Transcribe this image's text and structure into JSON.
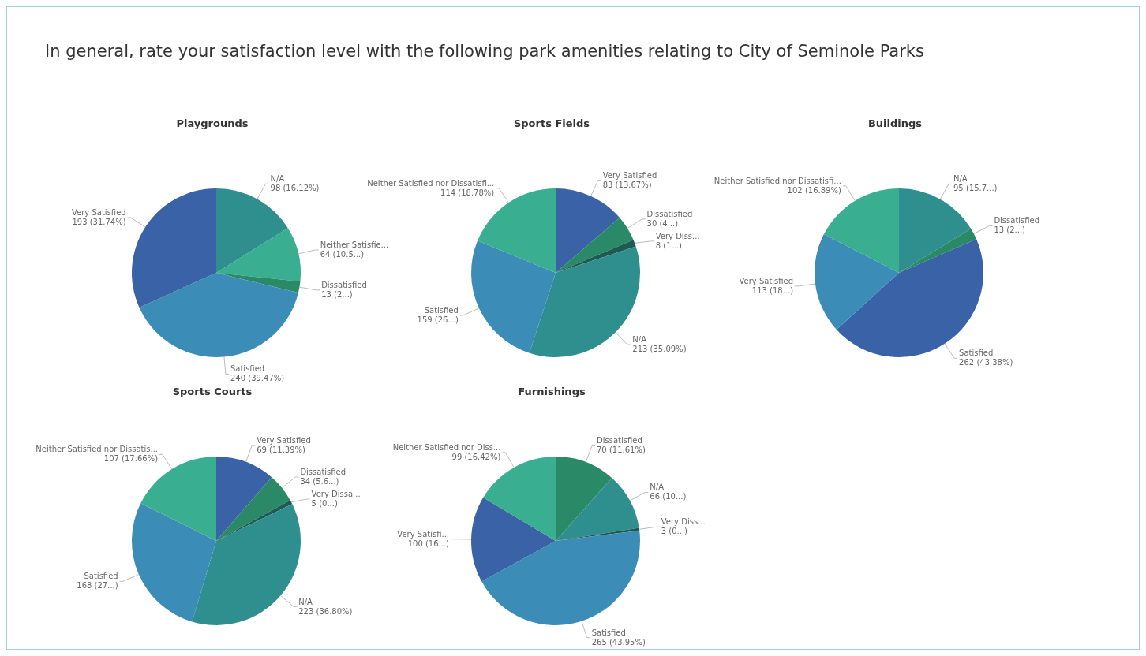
{
  "chart_data": [
    {
      "type": "other",
      "title": "In general, rate your satisfaction level with the following park amenities relating to City of Seminole Parks"
    },
    {
      "type": "pie",
      "title": "Playgrounds",
      "categories": [
        "N/A",
        "Neither Satisfie...",
        "Dissatisfied",
        "Satisfied",
        "Very Satisfied"
      ],
      "values": [
        98,
        64,
        13,
        240,
        193
      ],
      "value_labels": [
        "98 (16.12%)",
        "64 (10.5...)",
        "13 (2...)",
        "240 (39.47%)",
        "193 (31.74%)"
      ],
      "colors": [
        "#2f8f8e",
        "#3aae90",
        "#2a8a68",
        "#3b8db8",
        "#3a62a6"
      ]
    },
    {
      "type": "pie",
      "title": "Sports Fields",
      "categories": [
        "Very Satisfied",
        "Dissatisfied",
        "Very Diss...",
        "N/A",
        "Satisfied",
        "Neither Satisfied nor Dissatisfi..."
      ],
      "values": [
        83,
        30,
        8,
        213,
        159,
        114
      ],
      "value_labels": [
        "83 (13.67%)",
        "30 (4...)",
        "8 (1...)",
        "213 (35.09%)",
        "159 (26...)",
        "114 (18.78%)"
      ],
      "colors": [
        "#3a62a6",
        "#2a8a68",
        "#1e5a52",
        "#2f8f8e",
        "#3b8db8",
        "#3aae90"
      ]
    },
    {
      "type": "pie",
      "title": "Buildings",
      "categories": [
        "N/A",
        "Dissatisfied",
        "Satisfied",
        "Very Satisfied",
        "Neither Satisfied nor Dissatisfi..."
      ],
      "values": [
        95,
        13,
        262,
        113,
        102
      ],
      "value_labels": [
        "95 (15.7...)",
        "13 (2...)",
        "262 (43.38%)",
        "113 (18...)",
        "102 (16.89%)"
      ],
      "colors": [
        "#2f8f8e",
        "#2a8a68",
        "#3a62a6",
        "#3b8db8",
        "#3aae90"
      ]
    },
    {
      "type": "pie",
      "title": "Sports Courts",
      "categories": [
        "Very Satisfied",
        "Dissatisfied",
        "Very Dissa...",
        "N/A",
        "Satisfied",
        "Neither Satisfied nor Dissatis..."
      ],
      "values": [
        69,
        34,
        5,
        223,
        168,
        107
      ],
      "value_labels": [
        "69 (11.39%)",
        "34 (5.6...)",
        "5 (0...)",
        "223 (36.80%)",
        "168 (27...)",
        "107 (17.66%)"
      ],
      "colors": [
        "#3a62a6",
        "#2a8a68",
        "#1e5a52",
        "#2f8f8e",
        "#3b8db8",
        "#3aae90"
      ]
    },
    {
      "type": "pie",
      "title": "Furnishings",
      "categories": [
        "Dissatisfied",
        "N/A",
        "Very Diss...",
        "Satisfied",
        "Very Satisfi...",
        "Neither Satisfied nor Diss..."
      ],
      "values": [
        70,
        66,
        3,
        265,
        100,
        99
      ],
      "value_labels": [
        "70 (11.61%)",
        "66 (10...)",
        "3 (0...)",
        "265 (43.95%)",
        "100 (16...)",
        "99 (16.42%)"
      ],
      "colors": [
        "#2a8a68",
        "#2f8f8e",
        "#1e5a52",
        "#3b8db8",
        "#3a62a6",
        "#3aae90"
      ]
    }
  ]
}
